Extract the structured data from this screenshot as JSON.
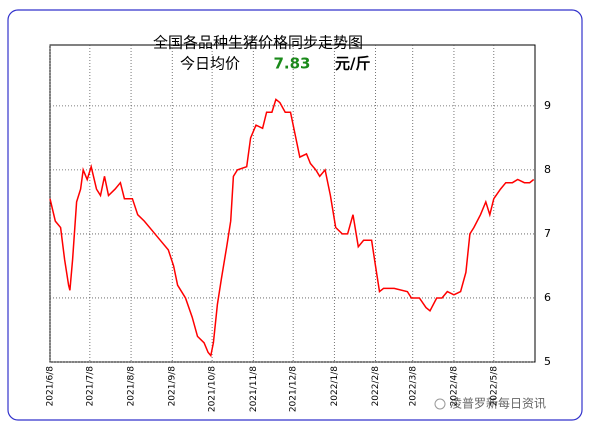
{
  "chart_data": {
    "type": "line",
    "title": "全国各品种生猪价格同步走势图",
    "subtitle": "今日均价",
    "current_price": 7.83,
    "unit": "元/斤",
    "watermark": "凌普罗新每日资讯",
    "x": [
      "2021/6/8",
      "2021/6/12",
      "2021/6/16",
      "2021/6/19",
      "2021/6/22",
      "2021/6/23",
      "2021/6/25",
      "2021/6/28",
      "2021/7/1",
      "2021/7/3",
      "2021/7/6",
      "2021/7/9",
      "2021/7/13",
      "2021/7/16",
      "2021/7/19",
      "2021/7/22",
      "2021/7/27",
      "2021/7/31",
      "2021/8/3",
      "2021/8/9",
      "2021/8/13",
      "2021/8/18",
      "2021/8/24",
      "2021/8/30",
      "2021/9/5",
      "2021/9/9",
      "2021/9/12",
      "2021/9/18",
      "2021/9/23",
      "2021/9/27",
      "2021/10/2",
      "2021/10/5",
      "2021/10/7",
      "2021/10/9",
      "2021/10/12",
      "2021/10/15",
      "2021/10/19",
      "2021/10/22",
      "2021/10/24",
      "2021/10/27",
      "2021/11/3",
      "2021/11/6",
      "2021/11/10",
      "2021/11/15",
      "2021/11/18",
      "2021/11/22",
      "2021/11/25",
      "2021/11/28",
      "2021/12/2",
      "2021/12/6",
      "2021/12/9",
      "2021/12/13",
      "2021/12/18",
      "2021/12/21",
      "2021/12/25",
      "2021/12/28",
      "2022/1/1",
      "2022/1/5",
      "2022/1/9",
      "2022/1/14",
      "2022/1/18",
      "2022/1/22",
      "2022/1/26",
      "2022/1/30",
      "2022/2/5",
      "2022/2/8",
      "2022/2/11",
      "2022/2/14",
      "2022/2/22",
      "2022/3/4",
      "2022/3/7",
      "2022/3/13",
      "2022/3/18",
      "2022/3/21",
      "2022/3/26",
      "2022/3/30",
      "2022/4/3",
      "2022/4/8",
      "2022/4/13",
      "2022/4/17",
      "2022/4/20",
      "2022/4/23",
      "2022/4/28",
      "2022/5/2",
      "2022/5/5",
      "2022/5/8",
      "2022/5/13",
      "2022/5/17",
      "2022/5/22",
      "2022/5/26",
      "2022/5/31",
      "2022/6/4",
      "2022/6/7"
    ],
    "series": [
      {
        "name": "均价",
        "color": "#ff0000",
        "values": [
          7.55,
          7.2,
          7.1,
          6.6,
          6.2,
          6.12,
          6.6,
          7.5,
          7.7,
          8.0,
          7.85,
          8.05,
          7.7,
          7.6,
          7.9,
          7.6,
          7.7,
          7.8,
          7.55,
          7.55,
          7.3,
          7.2,
          7.05,
          6.9,
          6.75,
          6.5,
          6.2,
          6.0,
          5.7,
          5.4,
          5.3,
          5.15,
          5.1,
          5.3,
          5.9,
          6.3,
          6.8,
          7.2,
          7.9,
          8.0,
          8.05,
          8.5,
          8.7,
          8.65,
          8.9,
          8.9,
          9.1,
          9.05,
          8.9,
          8.9,
          8.6,
          8.2,
          8.25,
          8.1,
          8.0,
          7.9,
          8.0,
          7.6,
          7.1,
          7.0,
          7.0,
          7.3,
          6.8,
          6.9,
          6.9,
          6.5,
          6.1,
          6.15,
          6.15,
          6.1,
          6.0,
          6.0,
          5.85,
          5.8,
          6.0,
          6.0,
          6.1,
          6.05,
          6.1,
          6.4,
          7.0,
          7.1,
          7.3,
          7.5,
          7.3,
          7.55,
          7.7,
          7.8,
          7.8,
          7.85,
          7.8,
          7.8,
          7.85
        ]
      }
    ],
    "xlim": [
      "2021/6/8",
      "2022/6/8"
    ],
    "xticks": [
      "2021/6/8",
      "2021/7/8",
      "2021/8/8",
      "2021/9/8",
      "2021/10/8",
      "2021/11/8",
      "2021/12/8",
      "2022/1/8",
      "2022/2/8",
      "2022/3/8",
      "2022/4/8",
      "2022/5/8"
    ],
    "ylim": [
      5,
      9.95
    ],
    "yticks": [
      5,
      6,
      7,
      8,
      9
    ],
    "grid": true
  }
}
